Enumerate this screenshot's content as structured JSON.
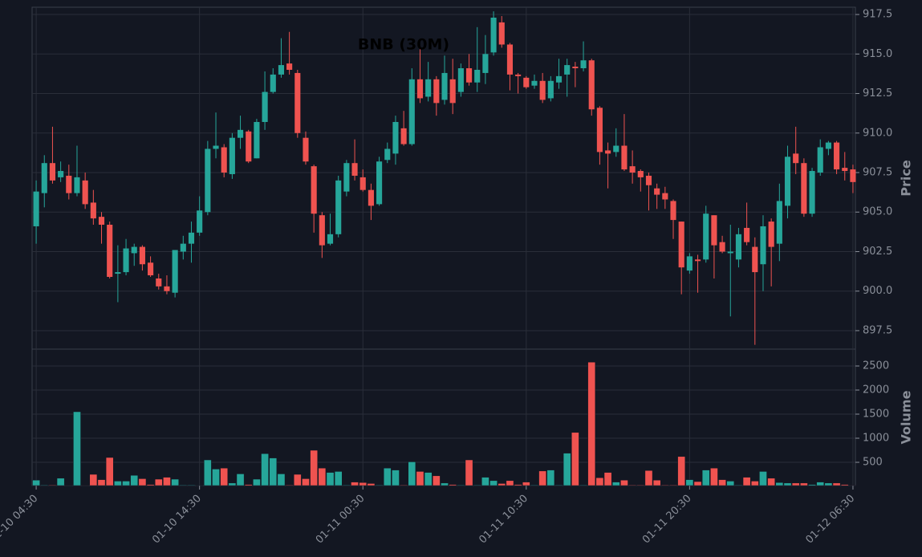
{
  "chart_data": [
    {
      "type": "candlestick",
      "title": "BNB (30M)",
      "ylabel": "Price",
      "up_color": "#26a69a",
      "down_color": "#ef5350",
      "grid": true,
      "ylim": [
        896.33,
        917.96
      ],
      "yticks": [
        897.5,
        {
          "value": 900,
          "label": "900.0"
        },
        902.5,
        {
          "value": 905,
          "label": "905.0"
        },
        907.5,
        {
          "value": 910,
          "label": "910.0"
        },
        912.5,
        {
          "value": 915,
          "label": "915.0"
        },
        917.5
      ],
      "open": [
        904.1,
        906.2,
        908.1,
        907.2,
        907.3,
        906.2,
        907.0,
        905.6,
        904.7,
        904.2,
        901.1,
        901.2,
        902.4,
        902.8,
        901.8,
        900.8,
        900.3,
        899.9,
        902.5,
        903.0,
        903.7,
        905.0,
        909.0,
        909.1,
        907.4,
        909.7,
        910.1,
        908.4,
        910.7,
        912.6,
        913.7,
        914.4,
        913.8,
        909.7,
        907.9,
        904.8,
        903.0,
        903.6,
        906.3,
        908.1,
        907.2,
        906.4,
        905.5,
        908.3,
        908.7,
        910.3,
        909.3,
        913.4,
        912.3,
        913.4,
        912.1,
        913.4,
        912.6,
        914.1,
        913.2,
        913.8,
        915.1,
        917.0,
        915.6,
        913.7,
        913.5,
        913.0,
        913.3,
        912.2,
        913.2,
        913.7,
        914.2,
        914.1,
        914.6,
        911.6,
        908.9,
        908.8,
        909.2,
        907.9,
        907.6,
        907.3,
        906.5,
        906.2,
        905.7,
        904.4,
        901.3,
        902.0,
        902.0,
        904.8,
        903.1,
        902.4,
        902.0,
        904.0,
        902.8,
        901.7,
        904.4,
        903.0,
        905.4,
        908.7,
        908.1,
        904.9,
        907.5,
        909.0,
        909.4,
        907.8,
        907.7
      ],
      "high": [
        907.0,
        908.6,
        910.4,
        908.2,
        908.0,
        909.2,
        907.5,
        906.4,
        905.0,
        904.4,
        902.9,
        903.3,
        903.0,
        902.9,
        902.2,
        901.1,
        901.0,
        902.6,
        903.5,
        904.4,
        906.0,
        909.5,
        911.3,
        909.3,
        910.0,
        911.1,
        910.2,
        910.9,
        913.9,
        914.1,
        916.0,
        916.4,
        914.0,
        910.1,
        908.0,
        905.0,
        904.9,
        907.3,
        908.3,
        909.6,
        907.7,
        906.8,
        908.5,
        909.4,
        911.1,
        911.4,
        914.1,
        915.3,
        914.5,
        913.6,
        914.9,
        914.7,
        914.4,
        915.0,
        916.7,
        916.2,
        917.7,
        917.4,
        915.7,
        913.8,
        913.6,
        913.7,
        913.8,
        913.6,
        914.7,
        914.7,
        914.5,
        915.8,
        914.7,
        911.7,
        909.4,
        910.3,
        911.2,
        908.9,
        907.7,
        907.5,
        906.8,
        906.6,
        905.8,
        904.4,
        902.4,
        902.3,
        905.4,
        904.8,
        903.5,
        904.2,
        904.0,
        905.6,
        903.4,
        904.8,
        904.6,
        906.8,
        909.2,
        910.4,
        908.4,
        907.8,
        909.6,
        909.5,
        909.5,
        908.8,
        908.0
      ],
      "low": [
        903.0,
        905.3,
        906.8,
        906.9,
        905.8,
        906.0,
        905.2,
        904.2,
        903.0,
        900.8,
        899.3,
        901.0,
        901.6,
        901.3,
        900.9,
        900.1,
        899.8,
        899.6,
        902.0,
        901.8,
        903.5,
        904.8,
        908.4,
        907.2,
        907.1,
        909.0,
        908.1,
        908.4,
        910.2,
        912.5,
        913.5,
        913.7,
        909.7,
        908.0,
        903.7,
        902.1,
        902.9,
        903.4,
        906.0,
        907.0,
        906.3,
        904.5,
        905.4,
        908.1,
        908.0,
        909.2,
        909.2,
        911.9,
        912.0,
        911.1,
        911.8,
        911.2,
        912.3,
        913.0,
        912.6,
        913.1,
        914.9,
        915.4,
        912.7,
        912.5,
        912.8,
        912.8,
        911.9,
        912.0,
        912.8,
        912.3,
        912.9,
        913.9,
        911.1,
        908.0,
        906.5,
        908.5,
        907.6,
        906.8,
        906.3,
        905.1,
        905.2,
        905.2,
        903.3,
        899.8,
        901.1,
        899.9,
        901.8,
        900.8,
        902.4,
        898.4,
        901.5,
        902.9,
        896.6,
        900.0,
        900.3,
        901.9,
        904.6,
        907.4,
        904.7,
        904.7,
        907.3,
        908.6,
        907.4,
        907.0,
        906.2
      ],
      "close": [
        906.3,
        908.1,
        907.0,
        907.6,
        906.2,
        907.2,
        905.5,
        904.6,
        904.2,
        900.9,
        901.2,
        902.7,
        902.8,
        901.7,
        901.0,
        900.3,
        900.0,
        902.6,
        903.0,
        903.7,
        905.1,
        909.0,
        909.2,
        907.5,
        909.7,
        910.2,
        908.2,
        910.7,
        912.6,
        913.7,
        914.3,
        914.0,
        910.0,
        908.2,
        904.9,
        902.9,
        903.6,
        907.0,
        908.1,
        907.3,
        906.4,
        905.4,
        908.2,
        909.0,
        910.7,
        909.3,
        913.4,
        912.2,
        913.4,
        911.9,
        913.8,
        911.9,
        914.1,
        913.2,
        914.0,
        915.0,
        917.3,
        915.6,
        913.7,
        913.6,
        912.9,
        913.3,
        912.1,
        913.3,
        913.6,
        914.3,
        914.1,
        914.6,
        911.5,
        908.8,
        908.7,
        909.2,
        907.7,
        907.5,
        907.2,
        906.7,
        906.1,
        905.8,
        904.5,
        901.5,
        902.2,
        901.9,
        904.9,
        902.9,
        902.5,
        902.5,
        903.6,
        903.1,
        901.2,
        904.1,
        902.8,
        905.7,
        908.5,
        908.1,
        904.9,
        907.6,
        909.1,
        909.4,
        907.7,
        907.6,
        906.9
      ]
    },
    {
      "type": "bar",
      "ylabel": "Volume",
      "grid": true,
      "ylim": [
        17,
        2850
      ],
      "yticks": [
        500,
        1000,
        1500,
        2000,
        2500
      ],
      "xlim": [
        -0.5,
        100.3
      ],
      "xticks": [
        {
          "value": 0,
          "label": "01-10 04:30"
        },
        {
          "value": 20,
          "label": "01-10 14:30"
        },
        {
          "value": 40,
          "label": "01-11 00:30"
        },
        {
          "value": 60,
          "label": "01-11 10:30"
        },
        {
          "value": 80,
          "label": "01-11 20:30"
        },
        {
          "value": 100,
          "label": "01-12 06:30"
        }
      ],
      "values": [
        130,
        30,
        30,
        170,
        20,
        1550,
        20,
        250,
        140,
        600,
        110,
        110,
        230,
        160,
        40,
        150,
        190,
        150,
        30,
        30,
        20,
        550,
        360,
        380,
        70,
        260,
        40,
        150,
        680,
        590,
        260,
        30,
        250,
        160,
        750,
        380,
        290,
        310,
        30,
        90,
        80,
        60,
        30,
        380,
        340,
        30,
        510,
        310,
        290,
        220,
        70,
        40,
        30,
        550,
        30,
        190,
        120,
        60,
        120,
        40,
        90,
        30,
        320,
        340,
        30,
        690,
        1120,
        30,
        2580,
        180,
        290,
        90,
        130,
        30,
        30,
        330,
        130,
        30,
        30,
        620,
        140,
        100,
        340,
        380,
        140,
        110,
        30,
        190,
        110,
        310,
        170,
        80,
        70,
        70,
        70,
        40,
        90,
        70,
        70,
        40,
        20
      ]
    }
  ]
}
